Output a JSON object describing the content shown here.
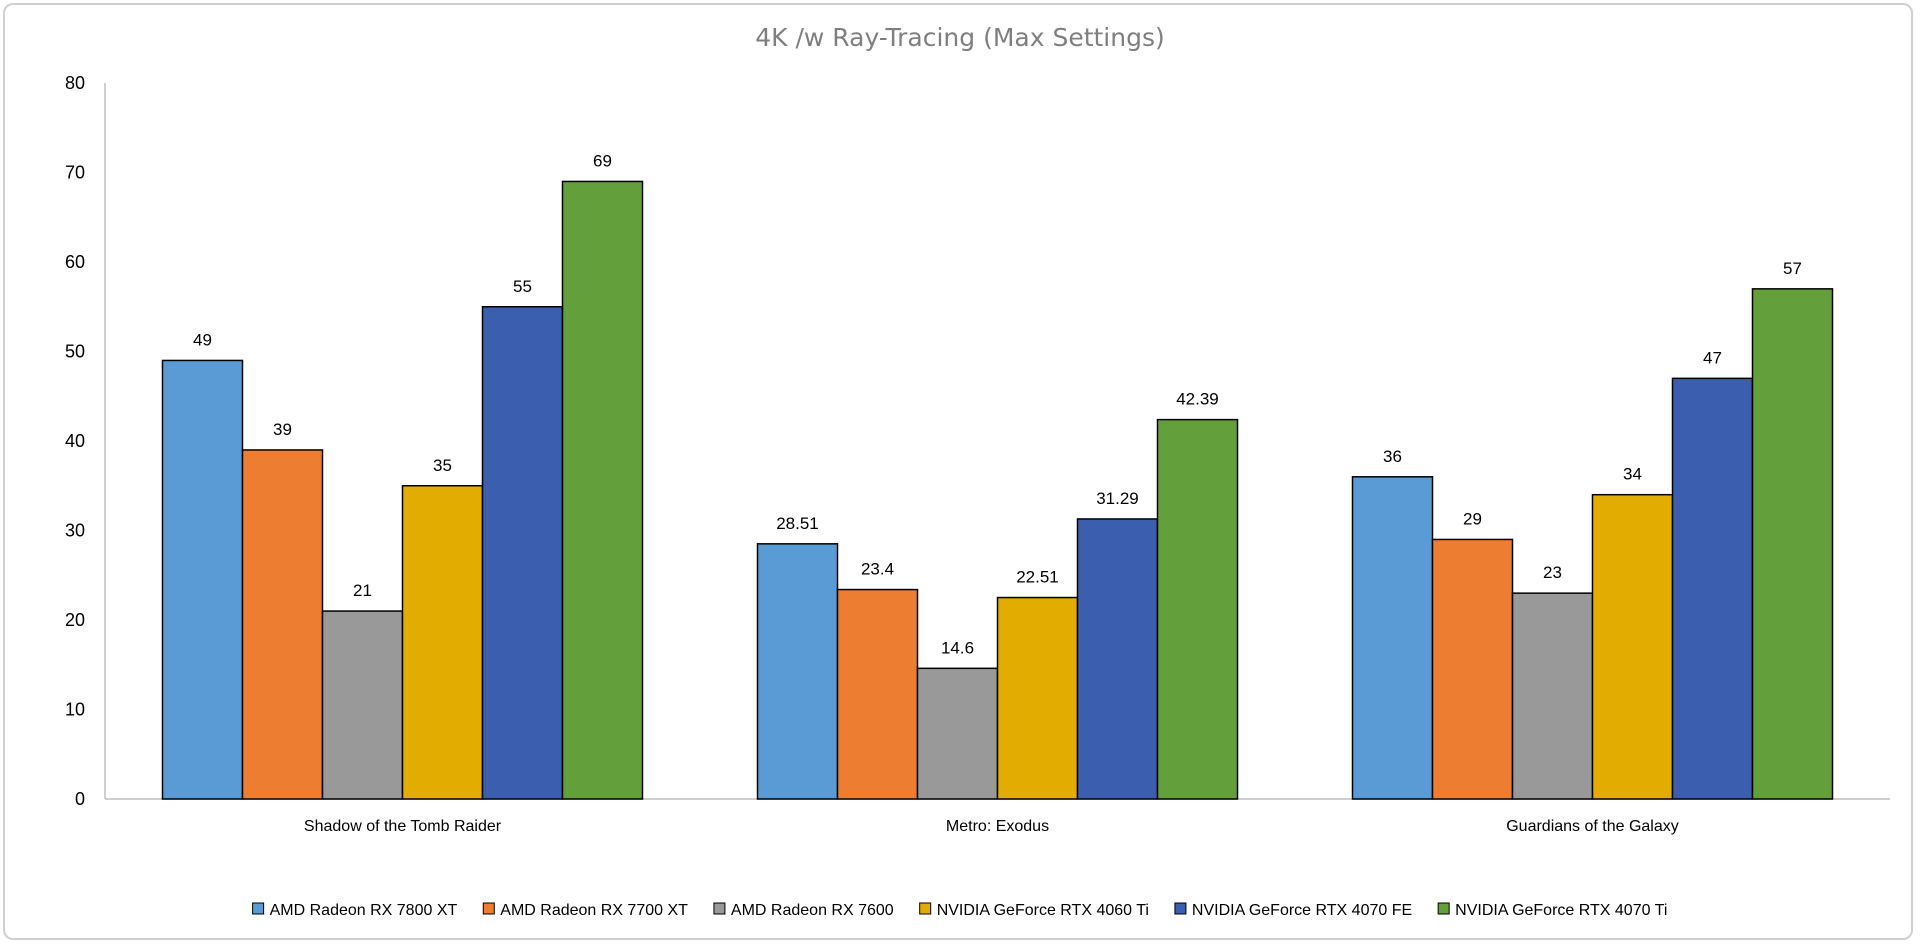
{
  "chart_data": {
    "type": "bar",
    "title": "4K /w Ray-Tracing (Max Settings)",
    "xlabel": "",
    "ylabel": "",
    "ylim": [
      0,
      80
    ],
    "yticks": [
      0,
      10,
      20,
      30,
      40,
      50,
      60,
      70,
      80
    ],
    "grid": false,
    "legend_position": "bottom",
    "categories": [
      "Shadow of the Tomb Raider",
      "Metro: Exodus",
      "Guardians of the Galaxy"
    ],
    "series": [
      {
        "name": "AMD Radeon RX 7800 XT",
        "color": "#5b9bd5",
        "values": [
          49,
          28.51,
          36
        ],
        "labels": [
          "49",
          "28.51",
          "36"
        ]
      },
      {
        "name": "AMD Radeon RX 7700 XT",
        "color": "#ed7d31",
        "values": [
          39,
          23.4,
          29
        ],
        "labels": [
          "39",
          "23.4",
          "29"
        ]
      },
      {
        "name": "AMD Radeon RX 7600",
        "color": "#999999",
        "values": [
          21,
          14.6,
          23
        ],
        "labels": [
          "21",
          "14.6",
          "23"
        ]
      },
      {
        "name": "NVIDIA GeForce RTX 4060 Ti",
        "color": "#e3ac00",
        "values": [
          35,
          22.51,
          34
        ],
        "labels": [
          "35",
          "22.51",
          "34"
        ]
      },
      {
        "name": "NVIDIA GeForce RTX 4070 FE",
        "color": "#3b5fae",
        "values": [
          55,
          31.29,
          47
        ],
        "labels": [
          "55",
          "31.29",
          "47"
        ]
      },
      {
        "name": "NVIDIA GeForce RTX 4070 Ti",
        "color": "#63a03c",
        "values": [
          69,
          42.39,
          57
        ],
        "labels": [
          "69",
          "42.39",
          "57"
        ]
      }
    ]
  }
}
